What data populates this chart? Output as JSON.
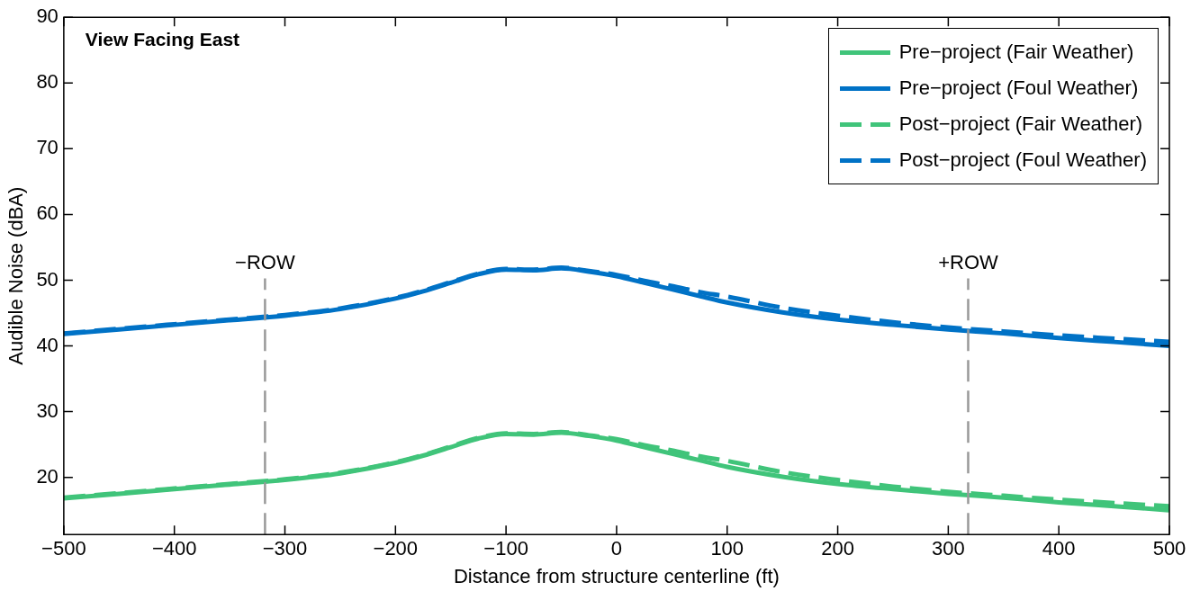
{
  "chart_data": {
    "type": "line",
    "xlabel": "Distance from structure centerline (ft)",
    "ylabel": "Audible Noise (dBA)",
    "annotations": [
      "View Facing East"
    ],
    "x": [
      -500,
      -450,
      -400,
      -350,
      -300,
      -250,
      -200,
      -175,
      -150,
      -125,
      -100,
      -75,
      -50,
      -25,
      0,
      25,
      50,
      75,
      100,
      150,
      200,
      250,
      300,
      350,
      400,
      450,
      500
    ],
    "series": [
      {
        "name": "Pre−project (Fair Weather)",
        "color": "#40c47a",
        "line_style": "solid",
        "values": [
          16.8,
          17.5,
          18.2,
          18.9,
          19.6,
          20.6,
          22.2,
          23.3,
          24.6,
          25.9,
          26.6,
          26.5,
          26.8,
          26.3,
          25.6,
          24.6,
          23.6,
          22.6,
          21.6,
          20.1,
          19.0,
          18.2,
          17.5,
          16.9,
          16.2,
          15.6,
          15.0
        ]
      },
      {
        "name": "Pre−project (Foul Weather)",
        "color": "#0072c6",
        "line_style": "solid",
        "values": [
          41.8,
          42.5,
          43.2,
          43.9,
          44.6,
          45.6,
          47.2,
          48.3,
          49.6,
          50.9,
          51.6,
          51.5,
          51.8,
          51.3,
          50.6,
          49.6,
          48.6,
          47.6,
          46.6,
          45.1,
          44.0,
          43.2,
          42.5,
          41.9,
          41.2,
          40.6,
          40.0
        ]
      },
      {
        "name": "Post−project (Fair Weather)",
        "color": "#40c47a",
        "line_style": "dashed",
        "values": [
          16.9,
          17.6,
          18.3,
          19.0,
          19.7,
          20.7,
          22.3,
          23.4,
          24.7,
          26.0,
          26.7,
          26.6,
          26.9,
          26.4,
          25.8,
          24.9,
          24.1,
          23.2,
          22.5,
          20.8,
          19.6,
          18.6,
          17.8,
          17.2,
          16.6,
          16.1,
          15.6
        ]
      },
      {
        "name": "Post−project (Foul Weather)",
        "color": "#0072c6",
        "line_style": "dashed",
        "values": [
          41.9,
          42.6,
          43.3,
          44.0,
          44.7,
          45.7,
          47.3,
          48.4,
          49.7,
          51.0,
          51.7,
          51.6,
          51.9,
          51.4,
          50.8,
          49.9,
          49.1,
          48.2,
          47.5,
          45.8,
          44.6,
          43.6,
          42.8,
          42.2,
          41.6,
          41.1,
          40.6
        ]
      }
    ],
    "ref_lines": [
      {
        "axis": "x",
        "value": -318,
        "label": "−ROW",
        "color": "#999999",
        "line_style": "dashed"
      },
      {
        "axis": "x",
        "value": 318,
        "label": "+ROW",
        "color": "#999999",
        "line_style": "dashed"
      }
    ],
    "xlim": [
      -500,
      500
    ],
    "xticks": [
      -500,
      -400,
      -300,
      -200,
      -100,
      0,
      100,
      200,
      300,
      400,
      500
    ],
    "ylim": [
      11.3,
      90
    ],
    "yticks": [
      20,
      30,
      40,
      50,
      60,
      70,
      80,
      90
    ],
    "grid": false,
    "legend": "top right"
  }
}
